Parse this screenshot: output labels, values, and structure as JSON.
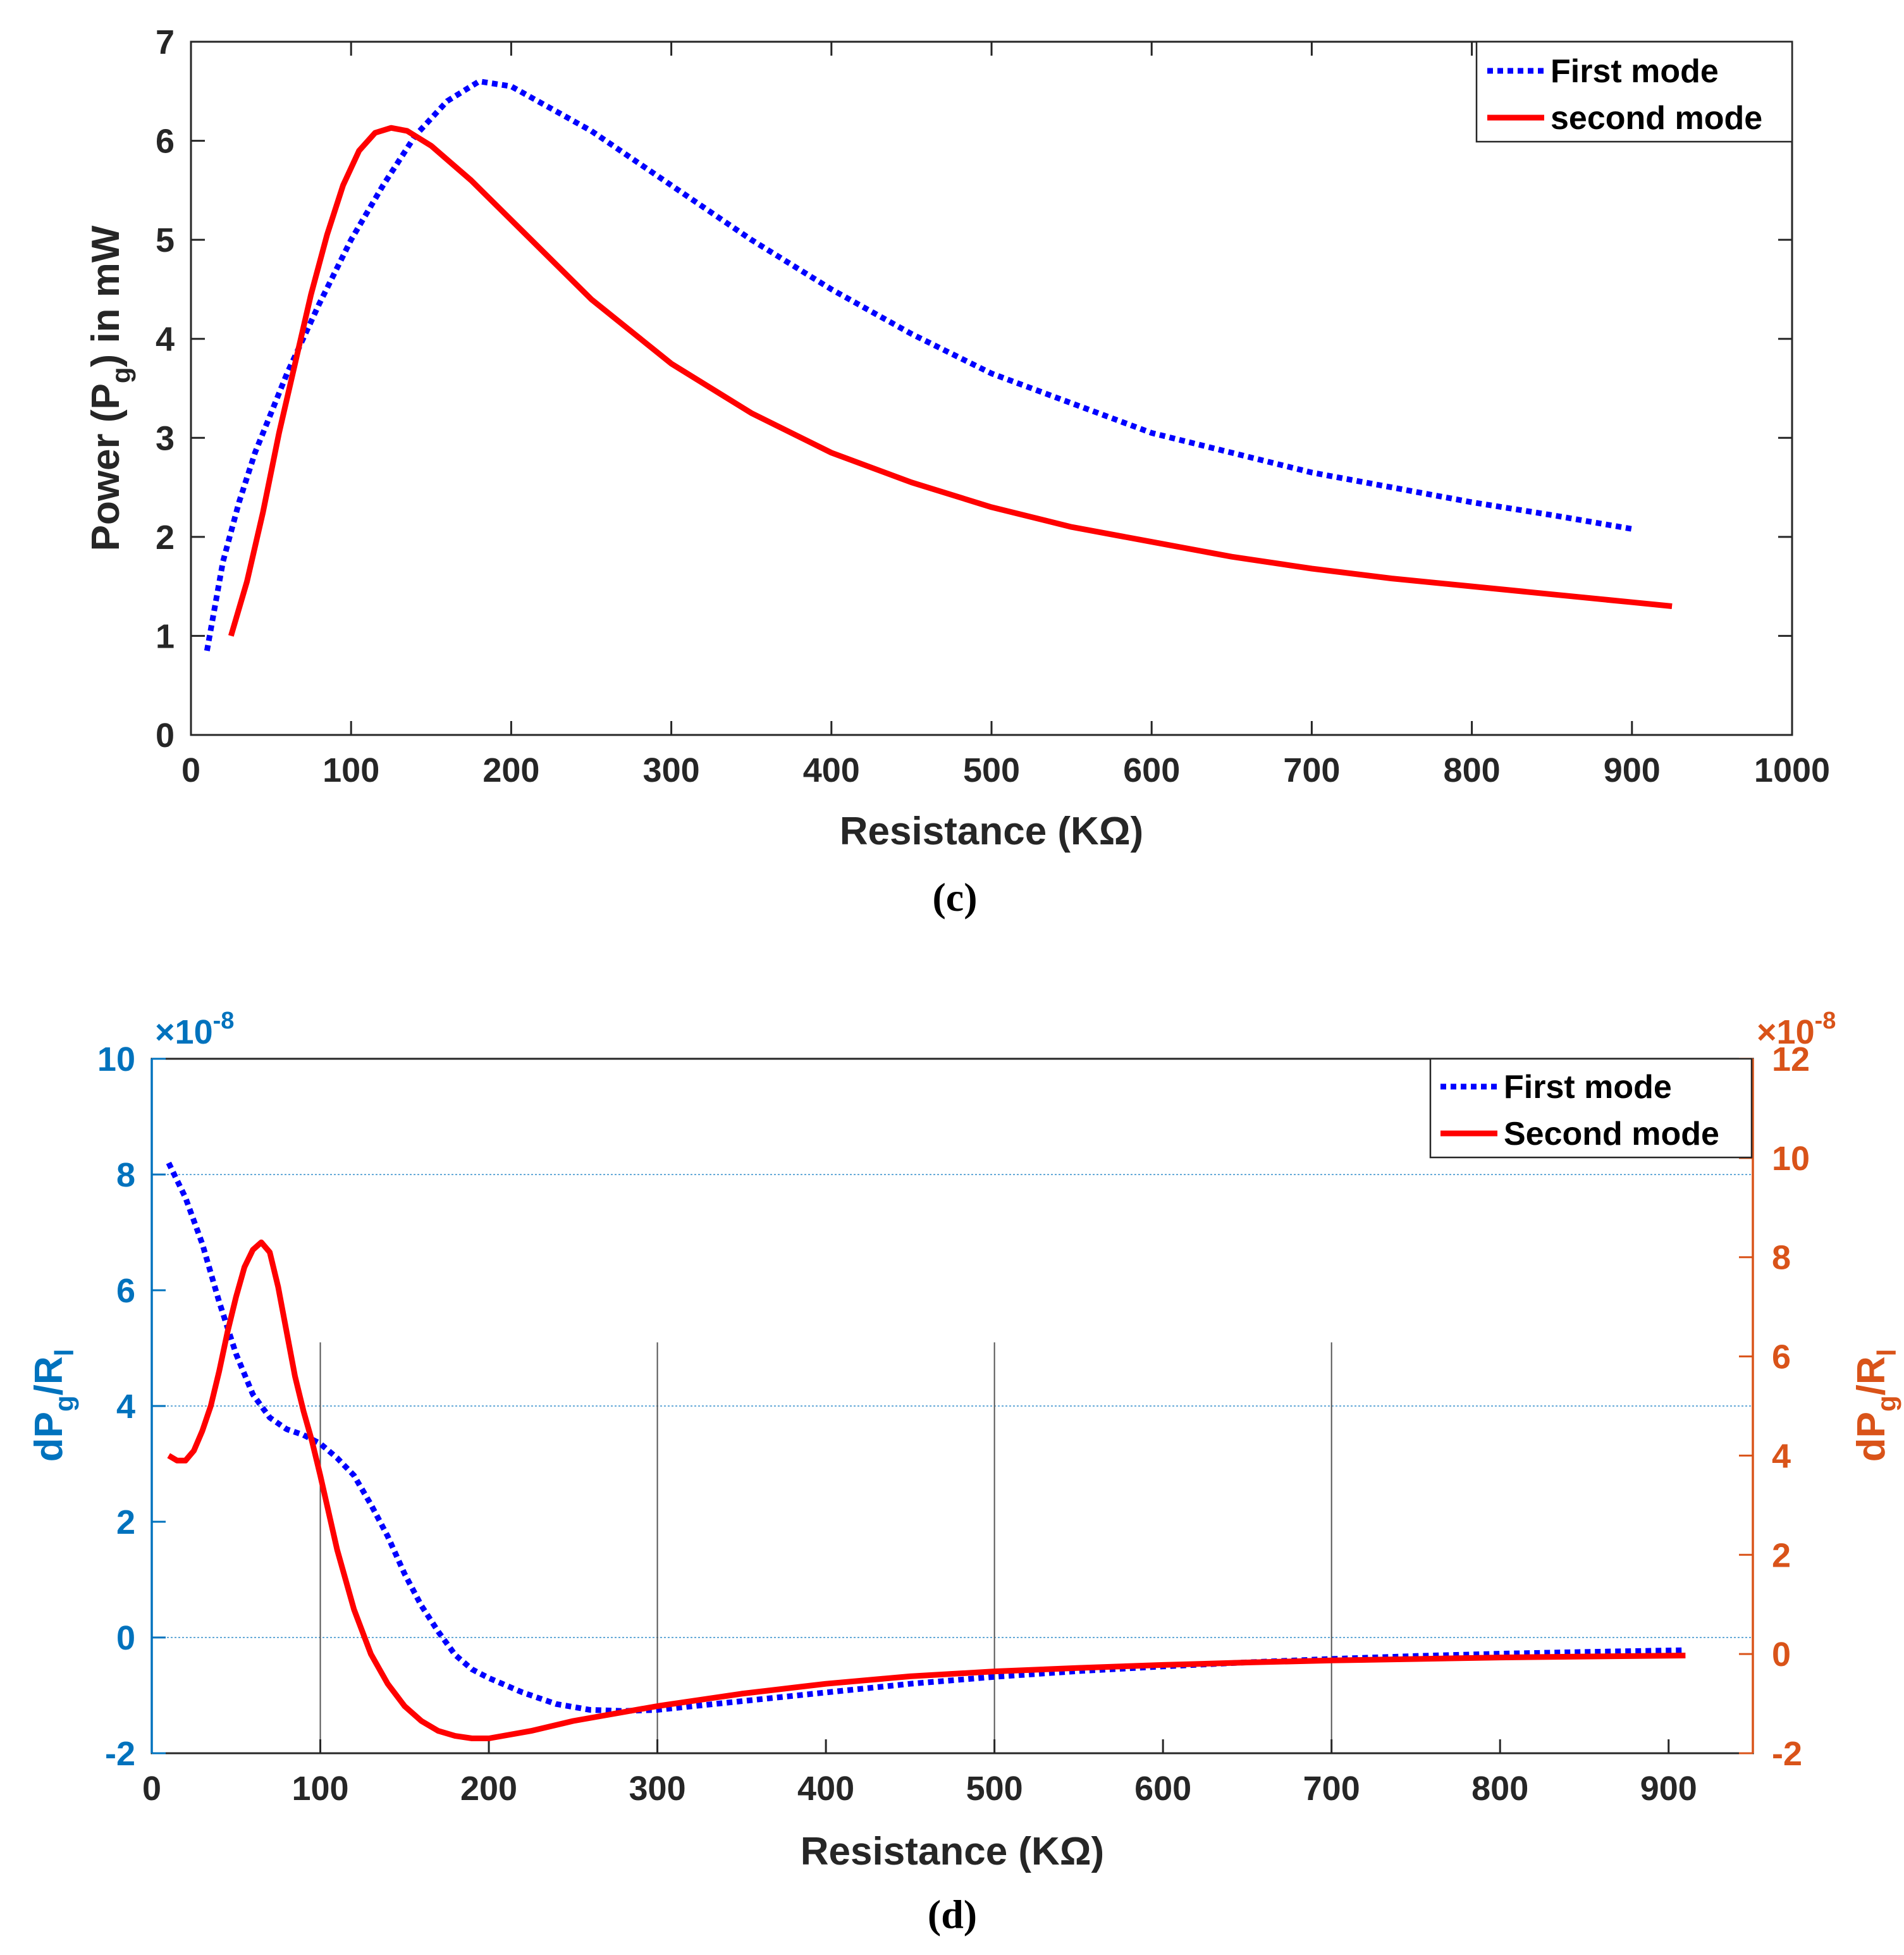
{
  "chart_data": [
    {
      "type": "line",
      "caption": "(c)",
      "xlabel": "Resistance (KΩ)",
      "ylabel": "Power (P_g) in mW",
      "ylabel_parts": {
        "pre": "Power (P",
        "sub": "g",
        "post": ") in mW"
      },
      "xlim": [
        0,
        1000
      ],
      "ylim": [
        0,
        7
      ],
      "xticks": [
        0,
        100,
        200,
        300,
        400,
        500,
        600,
        700,
        800,
        900,
        1000
      ],
      "yticks": [
        0,
        1,
        2,
        3,
        4,
        5,
        6,
        7
      ],
      "grid": false,
      "legend_position": "top-right",
      "series": [
        {
          "name": "First mode",
          "color": "#0000ff",
          "style": "dotted",
          "x": [
            10,
            20,
            30,
            40,
            60,
            80,
            100,
            120,
            140,
            160,
            180,
            200,
            250,
            300,
            350,
            400,
            450,
            500,
            550,
            600,
            650,
            700,
            750,
            800,
            850,
            900
          ],
          "y": [
            0.85,
            1.75,
            2.35,
            2.85,
            3.65,
            4.35,
            5.0,
            5.55,
            6.05,
            6.4,
            6.6,
            6.55,
            6.1,
            5.55,
            5.0,
            4.5,
            4.05,
            3.65,
            3.35,
            3.05,
            2.85,
            2.65,
            2.5,
            2.35,
            2.22,
            2.08
          ]
        },
        {
          "name": "second mode",
          "color": "#ff0000",
          "style": "solid",
          "x": [
            25,
            35,
            45,
            55,
            65,
            75,
            85,
            95,
            105,
            115,
            125,
            135,
            150,
            175,
            200,
            250,
            300,
            350,
            400,
            450,
            500,
            550,
            600,
            650,
            700,
            750,
            800,
            850,
            900,
            925
          ],
          "y": [
            1.0,
            1.55,
            2.25,
            3.05,
            3.75,
            4.45,
            5.05,
            5.55,
            5.9,
            6.08,
            6.13,
            6.1,
            5.95,
            5.6,
            5.2,
            4.4,
            3.75,
            3.25,
            2.85,
            2.55,
            2.3,
            2.1,
            1.95,
            1.8,
            1.68,
            1.58,
            1.5,
            1.42,
            1.34,
            1.3
          ]
        }
      ]
    },
    {
      "type": "line",
      "caption": "(d)",
      "xlabel": "Resistance (KΩ)",
      "ylabel_left": "dP_g/R_l",
      "ylabel_left_parts": {
        "a": "dP",
        "b": "g",
        "c": "/R",
        "d": "l"
      },
      "ylabel_right": "dP_g/R_l",
      "ylabel_right_parts": {
        "a": "dP",
        "b": "g",
        "c": "/R",
        "d": "l"
      },
      "exponent_left": "×10",
      "exponent_left_sup": "-8",
      "exponent_right": "×10",
      "exponent_right_sup": "-8",
      "xlim": [
        0,
        950
      ],
      "ylim_left": [
        -2,
        10
      ],
      "ylim_right": [
        -2,
        12
      ],
      "xticks": [
        0,
        100,
        200,
        300,
        400,
        500,
        600,
        700,
        800,
        900
      ],
      "yticks_left": [
        -2,
        0,
        2,
        4,
        6,
        8,
        10
      ],
      "yticks_right": [
        -2,
        0,
        2,
        4,
        6,
        8,
        10,
        12
      ],
      "left_axis_color": "#0072bd",
      "right_axis_color": "#d95319",
      "grid_h_left": [
        0,
        4,
        8
      ],
      "grid_v_x": [
        100,
        300,
        500,
        700
      ],
      "grid_v_top_left_units": 5.1,
      "legend_position": "top-right",
      "series": [
        {
          "name": "First mode",
          "axis": "left",
          "color": "#0000ff",
          "style": "dotted",
          "x": [
            10,
            20,
            30,
            40,
            50,
            60,
            70,
            80,
            90,
            100,
            110,
            120,
            130,
            140,
            150,
            160,
            170,
            180,
            190,
            200,
            220,
            240,
            260,
            280,
            300,
            350,
            400,
            450,
            500,
            550,
            600,
            650,
            700,
            750,
            800,
            850,
            910
          ],
          "y": [
            8.2,
            7.6,
            6.8,
            5.8,
            4.9,
            4.2,
            3.8,
            3.6,
            3.5,
            3.35,
            3.1,
            2.8,
            2.3,
            1.75,
            1.1,
            0.55,
            0.1,
            -0.3,
            -0.55,
            -0.7,
            -0.95,
            -1.15,
            -1.25,
            -1.27,
            -1.25,
            -1.1,
            -0.95,
            -0.8,
            -0.68,
            -0.58,
            -0.5,
            -0.43,
            -0.37,
            -0.32,
            -0.28,
            -0.25,
            -0.22
          ]
        },
        {
          "name": "Second mode",
          "axis": "right",
          "color": "#ff0000",
          "style": "solid",
          "x": [
            10,
            15,
            20,
            25,
            30,
            35,
            40,
            45,
            50,
            55,
            60,
            65,
            70,
            75,
            80,
            85,
            90,
            95,
            100,
            110,
            120,
            130,
            140,
            150,
            160,
            170,
            180,
            190,
            200,
            225,
            250,
            300,
            350,
            400,
            450,
            500,
            550,
            600,
            650,
            700,
            750,
            800,
            850,
            910
          ],
          "y": [
            4.0,
            3.9,
            3.9,
            4.1,
            4.5,
            5.0,
            5.7,
            6.5,
            7.2,
            7.8,
            8.15,
            8.3,
            8.1,
            7.4,
            6.5,
            5.6,
            4.9,
            4.3,
            3.6,
            2.1,
            0.9,
            0.0,
            -0.6,
            -1.05,
            -1.35,
            -1.55,
            -1.65,
            -1.7,
            -1.7,
            -1.55,
            -1.35,
            -1.05,
            -0.8,
            -0.6,
            -0.45,
            -0.35,
            -0.28,
            -0.22,
            -0.17,
            -0.13,
            -0.1,
            -0.07,
            -0.05,
            -0.03
          ]
        }
      ]
    }
  ]
}
